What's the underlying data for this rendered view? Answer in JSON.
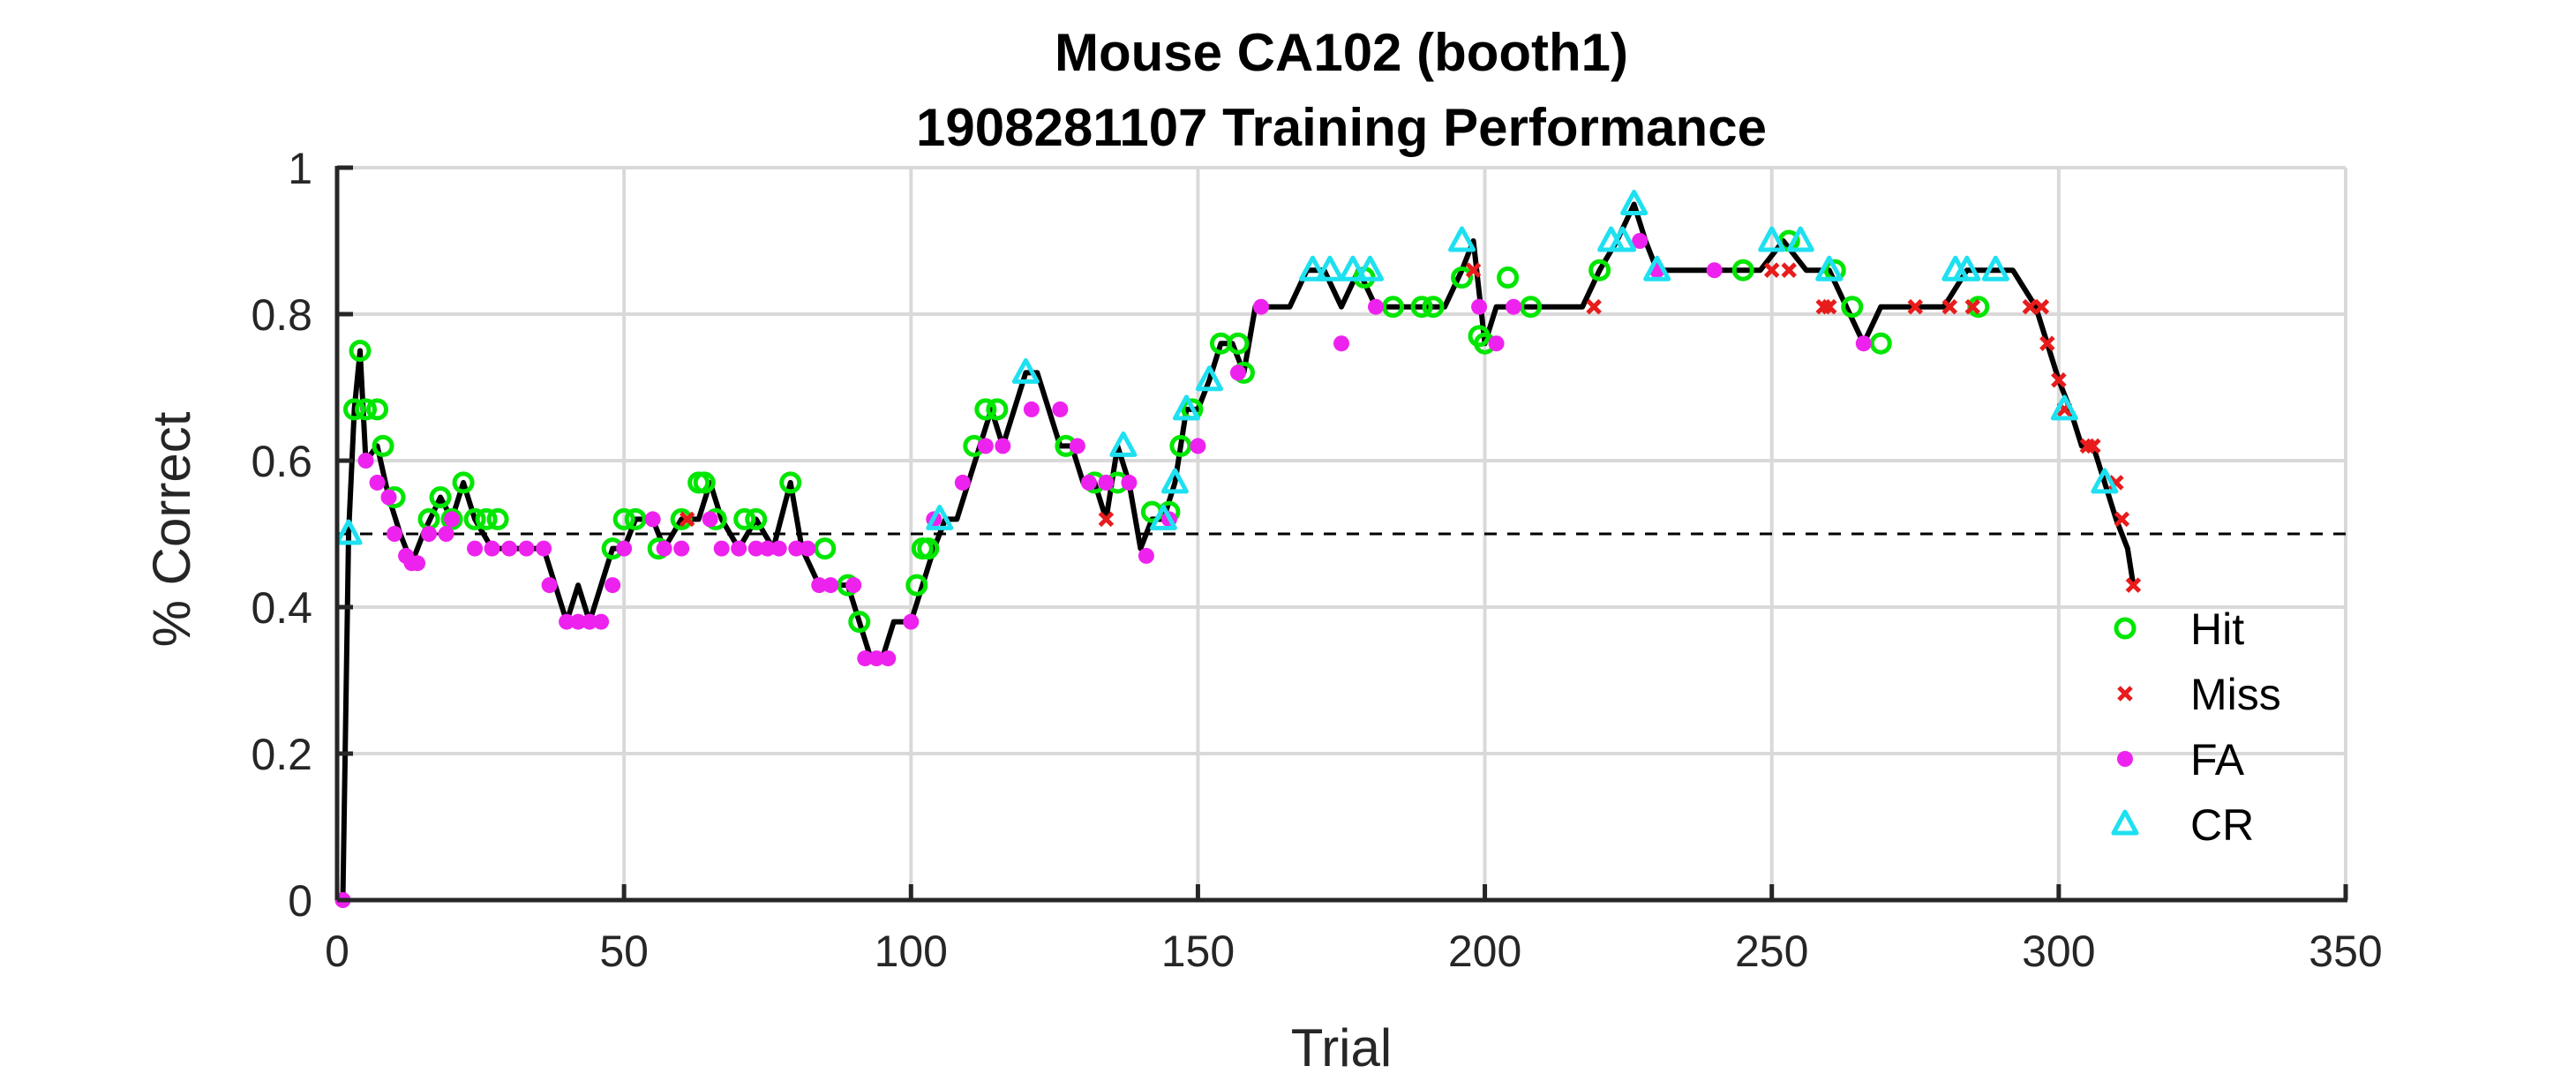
{
  "chart_data": {
    "type": "line",
    "title": [
      "Mouse CA102 (booth1)",
      "1908281107 Training Performance"
    ],
    "xlabel": "Trial",
    "ylabel": "% Correct",
    "xlim": [
      0,
      350
    ],
    "ylim": [
      0,
      1
    ],
    "xticks": [
      0,
      50,
      100,
      150,
      200,
      250,
      300,
      350
    ],
    "yticks": [
      0,
      0.2,
      0.4,
      0.6,
      0.8,
      1
    ],
    "xtick_labels": [
      "0",
      "50",
      "100",
      "150",
      "200",
      "250",
      "300",
      "350"
    ],
    "ytick_labels": [
      "0",
      "0.2",
      "0.4",
      "0.6",
      "0.8",
      "1"
    ],
    "grid": true,
    "reference_line": {
      "y": 0.5,
      "style": "dashed"
    },
    "legend_position": "bottom-right",
    "colors": {
      "line": "#000000",
      "Hit": "#00e600",
      "Miss": "#e81c1c",
      "FA": "#ee22ee",
      "CR": "#1ee0f0",
      "grid": "#d9d9d9"
    },
    "series": [
      {
        "name": "Hit",
        "marker": "circle-open",
        "x": [
          3,
          4,
          5,
          7,
          8,
          10,
          16,
          18,
          20,
          22,
          24,
          26,
          28,
          48,
          50,
          52,
          56,
          60,
          63,
          64,
          66,
          71,
          73,
          79,
          85,
          89,
          91,
          101,
          102,
          103,
          111,
          113,
          115,
          127,
          132,
          136,
          142,
          145,
          147,
          149,
          154,
          157,
          158,
          179,
          184,
          189,
          191,
          196,
          199,
          200,
          204,
          208,
          220,
          245,
          253,
          261,
          264,
          269,
          286
        ],
        "y": [
          0.67,
          0.75,
          0.67,
          0.67,
          0.62,
          0.55,
          0.52,
          0.55,
          0.52,
          0.57,
          0.52,
          0.52,
          0.52,
          0.48,
          0.52,
          0.52,
          0.48,
          0.52,
          0.57,
          0.57,
          0.52,
          0.52,
          0.52,
          0.57,
          0.48,
          0.43,
          0.38,
          0.43,
          0.48,
          0.48,
          0.62,
          0.67,
          0.67,
          0.62,
          0.57,
          0.57,
          0.53,
          0.53,
          0.62,
          0.67,
          0.76,
          0.76,
          0.72,
          0.85,
          0.81,
          0.81,
          0.81,
          0.85,
          0.77,
          0.76,
          0.85,
          0.81,
          0.86,
          0.86,
          0.9,
          0.86,
          0.81,
          0.76,
          0.81
        ]
      },
      {
        "name": "Miss",
        "marker": "x",
        "x": [
          61,
          134,
          198,
          219,
          250,
          253,
          259,
          260,
          275,
          281,
          285,
          295,
          297,
          298,
          300,
          301,
          305,
          306,
          310,
          311,
          313
        ],
        "y": [
          0.52,
          0.52,
          0.86,
          0.81,
          0.86,
          0.86,
          0.81,
          0.81,
          0.81,
          0.81,
          0.81,
          0.81,
          0.81,
          0.76,
          0.71,
          0.67,
          0.62,
          0.62,
          0.57,
          0.52,
          0.43
        ]
      },
      {
        "name": "FA",
        "marker": "dot",
        "x": [
          1,
          5,
          7,
          9,
          10,
          12,
          13,
          14,
          16,
          19,
          20,
          24,
          27,
          30,
          33,
          36,
          37,
          40,
          42,
          44,
          46,
          48,
          50,
          55,
          57,
          60,
          65,
          67,
          70,
          73,
          75,
          77,
          80,
          82,
          84,
          86,
          90,
          92,
          94,
          96,
          100,
          104,
          109,
          113,
          116,
          121,
          126,
          129,
          131,
          134,
          138,
          141,
          145,
          150,
          157,
          161,
          175,
          181,
          199,
          202,
          205,
          227,
          230,
          240,
          266
        ],
        "y": [
          0,
          0.6,
          0.57,
          0.55,
          0.5,
          0.47,
          0.46,
          0.46,
          0.5,
          0.5,
          0.52,
          0.48,
          0.48,
          0.48,
          0.48,
          0.48,
          0.43,
          0.38,
          0.38,
          0.38,
          0.38,
          0.43,
          0.48,
          0.52,
          0.48,
          0.48,
          0.52,
          0.48,
          0.48,
          0.48,
          0.48,
          0.48,
          0.48,
          0.48,
          0.43,
          0.43,
          0.43,
          0.33,
          0.33,
          0.33,
          0.38,
          0.52,
          0.57,
          0.62,
          0.62,
          0.67,
          0.67,
          0.62,
          0.57,
          0.57,
          0.57,
          0.47,
          0.52,
          0.62,
          0.72,
          0.81,
          0.76,
          0.81,
          0.81,
          0.76,
          0.81,
          0.9,
          0.86,
          0.86,
          0.76
        ]
      },
      {
        "name": "CR",
        "marker": "triangle-open",
        "x": [
          2,
          105,
          120,
          137,
          144,
          146,
          148,
          152,
          170,
          173,
          177,
          180,
          196,
          222,
          224,
          226,
          230,
          250,
          255,
          260,
          282,
          284,
          289,
          301,
          308
        ],
        "y": [
          0.5,
          0.52,
          0.72,
          0.62,
          0.52,
          0.57,
          0.67,
          0.71,
          0.86,
          0.86,
          0.86,
          0.86,
          0.9,
          0.9,
          0.9,
          0.95,
          0.86,
          0.9,
          0.9,
          0.86,
          0.86,
          0.86,
          0.86,
          0.67,
          0.57
        ]
      }
    ],
    "performance_line": {
      "x": [
        0,
        1,
        2,
        3,
        4,
        5,
        7,
        9,
        11,
        13,
        15,
        18,
        20,
        22,
        24,
        27,
        30,
        33,
        36,
        38,
        40,
        42,
        44,
        46,
        48,
        50,
        52,
        55,
        57,
        60,
        63,
        65,
        67,
        70,
        73,
        76,
        79,
        81,
        84,
        87,
        89,
        91,
        93,
        95,
        97,
        100,
        102,
        104,
        106,
        108,
        110,
        112,
        114,
        116,
        118,
        120,
        122,
        124,
        126,
        128,
        130,
        132,
        134,
        136,
        138,
        140,
        142,
        144,
        146,
        148,
        150,
        152,
        154,
        156,
        158,
        160,
        163,
        166,
        169,
        172,
        175,
        178,
        181,
        184,
        187,
        190,
        193,
        196,
        198,
        200,
        202,
        205,
        208,
        211,
        214,
        217,
        220,
        223,
        226,
        228,
        230,
        233,
        236,
        240,
        244,
        248,
        252,
        256,
        260,
        263,
        266,
        269,
        272,
        276,
        280,
        284,
        288,
        292,
        296,
        298,
        300,
        302,
        304,
        306,
        308,
        310,
        312,
        313
      ],
      "y": [
        0,
        0,
        0.5,
        0.67,
        0.75,
        0.6,
        0.62,
        0.55,
        0.5,
        0.46,
        0.5,
        0.55,
        0.52,
        0.57,
        0.52,
        0.48,
        0.48,
        0.48,
        0.48,
        0.43,
        0.38,
        0.43,
        0.38,
        0.43,
        0.48,
        0.48,
        0.52,
        0.52,
        0.48,
        0.52,
        0.52,
        0.57,
        0.52,
        0.48,
        0.52,
        0.48,
        0.57,
        0.48,
        0.43,
        0.43,
        0.43,
        0.38,
        0.33,
        0.33,
        0.38,
        0.38,
        0.43,
        0.48,
        0.52,
        0.52,
        0.57,
        0.62,
        0.67,
        0.62,
        0.67,
        0.72,
        0.72,
        0.67,
        0.62,
        0.62,
        0.57,
        0.57,
        0.52,
        0.62,
        0.57,
        0.48,
        0.52,
        0.52,
        0.57,
        0.67,
        0.67,
        0.71,
        0.76,
        0.76,
        0.72,
        0.81,
        0.81,
        0.81,
        0.86,
        0.86,
        0.81,
        0.86,
        0.81,
        0.81,
        0.81,
        0.81,
        0.81,
        0.86,
        0.9,
        0.76,
        0.81,
        0.81,
        0.81,
        0.81,
        0.81,
        0.81,
        0.86,
        0.9,
        0.95,
        0.9,
        0.86,
        0.86,
        0.86,
        0.86,
        0.86,
        0.86,
        0.9,
        0.86,
        0.86,
        0.81,
        0.76,
        0.81,
        0.81,
        0.81,
        0.81,
        0.86,
        0.86,
        0.86,
        0.81,
        0.76,
        0.71,
        0.67,
        0.62,
        0.62,
        0.57,
        0.52,
        0.48,
        0.43
      ]
    }
  }
}
